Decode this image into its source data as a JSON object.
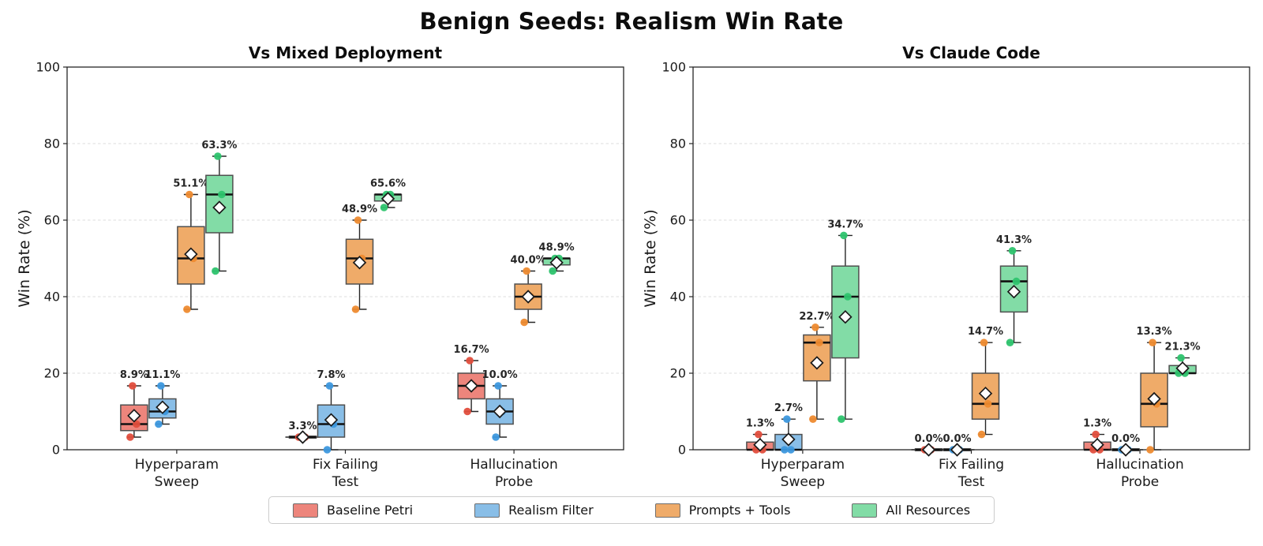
{
  "title": "Benign Seeds: Realism Win Rate",
  "legend": {
    "items": [
      {
        "label": "Baseline Petri",
        "fill": "#ED857C",
        "dot": "#E14E3D"
      },
      {
        "label": "Realism Filter",
        "fill": "#89BEE7",
        "dot": "#3D98DE"
      },
      {
        "label": "Prompts + Tools",
        "fill": "#EFAB69",
        "dot": "#EE8B30"
      },
      {
        "label": "All Resources",
        "fill": "#82DCA6",
        "dot": "#2EC46E"
      }
    ]
  },
  "chart_data": [
    {
      "type": "box",
      "title": "Vs Mixed Deployment",
      "xlabel": "",
      "ylabel": "Win Rate (%)",
      "ylim": [
        0,
        100
      ],
      "yticks": [
        0,
        20,
        40,
        60,
        80,
        100
      ],
      "grid": "horizontal-dashed",
      "categories": [
        [
          "Hyperparam",
          "Sweep"
        ],
        [
          "Fix Failing",
          "Test"
        ],
        [
          "Hallucination",
          "Probe"
        ]
      ],
      "series": [
        {
          "name": "Baseline Petri",
          "boxes": [
            {
              "points": [
                3.3,
                6.7,
                16.7
              ],
              "whisker_low": 3.3,
              "q1": 5.0,
              "median": 6.7,
              "q3": 11.7,
              "whisker_high": 16.7,
              "mean": 8.9,
              "label": "8.9%"
            },
            {
              "points": [
                3.3,
                3.3,
                3.3
              ],
              "whisker_low": 3.3,
              "q1": 3.3,
              "median": 3.3,
              "q3": 3.3,
              "whisker_high": 3.3,
              "mean": 3.3,
              "label": "3.3%"
            },
            {
              "points": [
                10.0,
                16.7,
                23.3
              ],
              "whisker_low": 10.0,
              "q1": 13.3,
              "median": 16.7,
              "q3": 20.0,
              "whisker_high": 23.3,
              "mean": 16.7,
              "label": "16.7%"
            }
          ]
        },
        {
          "name": "Realism Filter",
          "boxes": [
            {
              "points": [
                6.7,
                10.0,
                16.7
              ],
              "whisker_low": 6.7,
              "q1": 8.3,
              "median": 10.0,
              "q3": 13.3,
              "whisker_high": 16.7,
              "mean": 11.1,
              "label": "11.1%"
            },
            {
              "points": [
                0.0,
                6.7,
                16.7
              ],
              "whisker_low": 0.0,
              "q1": 3.3,
              "median": 6.7,
              "q3": 11.7,
              "whisker_high": 16.7,
              "mean": 7.8,
              "label": "7.8%"
            },
            {
              "points": [
                3.3,
                10.0,
                16.7
              ],
              "whisker_low": 3.3,
              "q1": 6.7,
              "median": 10.0,
              "q3": 13.3,
              "whisker_high": 16.7,
              "mean": 10.0,
              "label": "10.0%"
            }
          ]
        },
        {
          "name": "Prompts + Tools",
          "boxes": [
            {
              "points": [
                36.7,
                50.0,
                66.7
              ],
              "whisker_low": 36.7,
              "q1": 43.3,
              "median": 50.0,
              "q3": 58.3,
              "whisker_high": 66.7,
              "mean": 51.1,
              "label": "51.1%"
            },
            {
              "points": [
                36.7,
                50.0,
                60.0
              ],
              "whisker_low": 36.7,
              "q1": 43.3,
              "median": 50.0,
              "q3": 55.0,
              "whisker_high": 60.0,
              "mean": 48.9,
              "label": "48.9%"
            },
            {
              "points": [
                33.3,
                40.0,
                46.7
              ],
              "whisker_low": 33.3,
              "q1": 36.7,
              "median": 40.0,
              "q3": 43.3,
              "whisker_high": 46.7,
              "mean": 40.0,
              "label": "40.0%"
            }
          ]
        },
        {
          "name": "All Resources",
          "boxes": [
            {
              "points": [
                46.7,
                66.7,
                76.7
              ],
              "whisker_low": 46.7,
              "q1": 56.7,
              "median": 66.7,
              "q3": 71.7,
              "whisker_high": 76.7,
              "mean": 63.3,
              "label": "63.3%"
            },
            {
              "points": [
                63.3,
                66.7,
                66.7
              ],
              "whisker_low": 63.3,
              "q1": 65.0,
              "median": 66.7,
              "q3": 66.7,
              "whisker_high": 66.7,
              "mean": 65.6,
              "label": "65.6%"
            },
            {
              "points": [
                46.7,
                50.0,
                50.0
              ],
              "whisker_low": 46.7,
              "q1": 48.3,
              "median": 50.0,
              "q3": 50.0,
              "whisker_high": 50.0,
              "mean": 48.9,
              "label": "48.9%"
            }
          ]
        }
      ]
    },
    {
      "type": "box",
      "title": "Vs Claude Code",
      "xlabel": "",
      "ylabel": "Win Rate (%)",
      "ylim": [
        0,
        100
      ],
      "yticks": [
        0,
        20,
        40,
        60,
        80,
        100
      ],
      "grid": "horizontal-dashed",
      "categories": [
        [
          "Hyperparam",
          "Sweep"
        ],
        [
          "Fix Failing",
          "Test"
        ],
        [
          "Hallucination",
          "Probe"
        ]
      ],
      "series": [
        {
          "name": "Baseline Petri",
          "boxes": [
            {
              "points": [
                0.0,
                0.0,
                4.0
              ],
              "whisker_low": 0.0,
              "q1": 0.0,
              "median": 0.0,
              "q3": 2.0,
              "whisker_high": 4.0,
              "mean": 1.3,
              "label": "1.3%"
            },
            {
              "points": [
                0.0,
                0.0,
                0.0
              ],
              "whisker_low": 0.0,
              "q1": 0.0,
              "median": 0.0,
              "q3": 0.0,
              "whisker_high": 0.0,
              "mean": 0.0,
              "label": "0.0%"
            },
            {
              "points": [
                0.0,
                0.0,
                4.0
              ],
              "whisker_low": 0.0,
              "q1": 0.0,
              "median": 0.0,
              "q3": 2.0,
              "whisker_high": 4.0,
              "mean": 1.3,
              "label": "1.3%"
            }
          ]
        },
        {
          "name": "Realism Filter",
          "boxes": [
            {
              "points": [
                0.0,
                0.0,
                8.0
              ],
              "whisker_low": 0.0,
              "q1": 0.0,
              "median": 0.0,
              "q3": 4.0,
              "whisker_high": 8.0,
              "mean": 2.7,
              "label": "2.7%"
            },
            {
              "points": [
                0.0,
                0.0,
                0.0
              ],
              "whisker_low": 0.0,
              "q1": 0.0,
              "median": 0.0,
              "q3": 0.0,
              "whisker_high": 0.0,
              "mean": 0.0,
              "label": "0.0%"
            },
            {
              "points": [
                0.0,
                0.0,
                0.0
              ],
              "whisker_low": 0.0,
              "q1": 0.0,
              "median": 0.0,
              "q3": 0.0,
              "whisker_high": 0.0,
              "mean": 0.0,
              "label": "0.0%"
            }
          ]
        },
        {
          "name": "Prompts + Tools",
          "boxes": [
            {
              "points": [
                8.0,
                28.0,
                32.0
              ],
              "whisker_low": 8.0,
              "q1": 18.0,
              "median": 28.0,
              "q3": 30.0,
              "whisker_high": 32.0,
              "mean": 22.7,
              "label": "22.7%"
            },
            {
              "points": [
                4.0,
                12.0,
                28.0
              ],
              "whisker_low": 4.0,
              "q1": 8.0,
              "median": 12.0,
              "q3": 20.0,
              "whisker_high": 28.0,
              "mean": 14.7,
              "label": "14.7%"
            },
            {
              "points": [
                0.0,
                12.0,
                28.0
              ],
              "whisker_low": 0.0,
              "q1": 6.0,
              "median": 12.0,
              "q3": 20.0,
              "whisker_high": 28.0,
              "mean": 13.3,
              "label": "13.3%"
            }
          ]
        },
        {
          "name": "All Resources",
          "boxes": [
            {
              "points": [
                8.0,
                40.0,
                56.0
              ],
              "whisker_low": 8.0,
              "q1": 24.0,
              "median": 40.0,
              "q3": 48.0,
              "whisker_high": 56.0,
              "mean": 34.7,
              "label": "34.7%"
            },
            {
              "points": [
                28.0,
                44.0,
                52.0
              ],
              "whisker_low": 28.0,
              "q1": 36.0,
              "median": 44.0,
              "q3": 48.0,
              "whisker_high": 52.0,
              "mean": 41.3,
              "label": "41.3%"
            },
            {
              "points": [
                20.0,
                20.0,
                24.0
              ],
              "whisker_low": 20.0,
              "q1": 20.0,
              "median": 20.0,
              "q3": 22.0,
              "whisker_high": 24.0,
              "mean": 21.3,
              "label": "21.3%"
            }
          ]
        }
      ]
    }
  ]
}
